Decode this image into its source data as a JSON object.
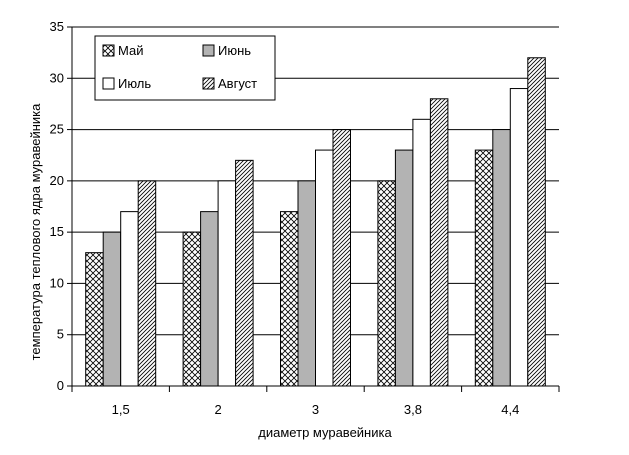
{
  "chart_data": {
    "type": "bar",
    "xlabel": "диаметр муравейника",
    "ylabel": "температура теплового ядра муравейника",
    "categories": [
      "1,5",
      "2",
      "3",
      "3,8",
      "4,4"
    ],
    "ylim": [
      0,
      35
    ],
    "yticks": [
      "0",
      "5",
      "10",
      "15",
      "20",
      "25",
      "30",
      "35"
    ],
    "grid": true,
    "legend_position": "top-left",
    "series": [
      {
        "name": "Май",
        "values": [
          13,
          15,
          17,
          20,
          23
        ],
        "pattern": "crosshatch"
      },
      {
        "name": "Июнь",
        "values": [
          15,
          17,
          20,
          23,
          25
        ],
        "pattern": "gray",
        "color": "#b3b3b3"
      },
      {
        "name": "Июль",
        "values": [
          17,
          20,
          23,
          26,
          29
        ],
        "pattern": "white",
        "color": "#ffffff"
      },
      {
        "name": "Август",
        "values": [
          20,
          22,
          25,
          28,
          32
        ],
        "pattern": "diagonal"
      }
    ]
  }
}
